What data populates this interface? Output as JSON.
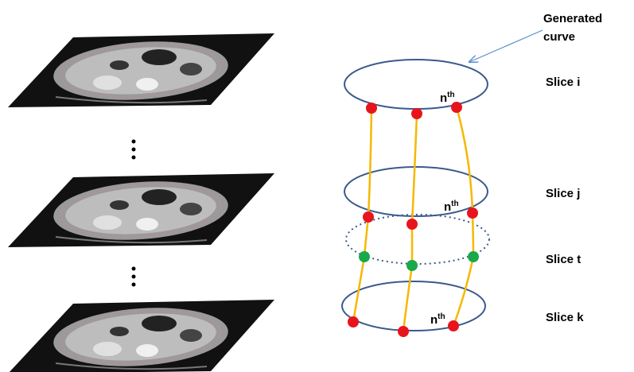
{
  "annotation": {
    "lines": [
      "Generated",
      "curve"
    ]
  },
  "slices": [
    {
      "label": "Slice i",
      "point_label": {
        "base": "n",
        "sup": "th"
      }
    },
    {
      "label": "Slice j",
      "point_label": {
        "base": "n",
        "sup": "th"
      }
    },
    {
      "label": "Slice t"
    },
    {
      "label": "Slice k",
      "point_label": {
        "base": "n",
        "sup": "th"
      }
    }
  ]
}
